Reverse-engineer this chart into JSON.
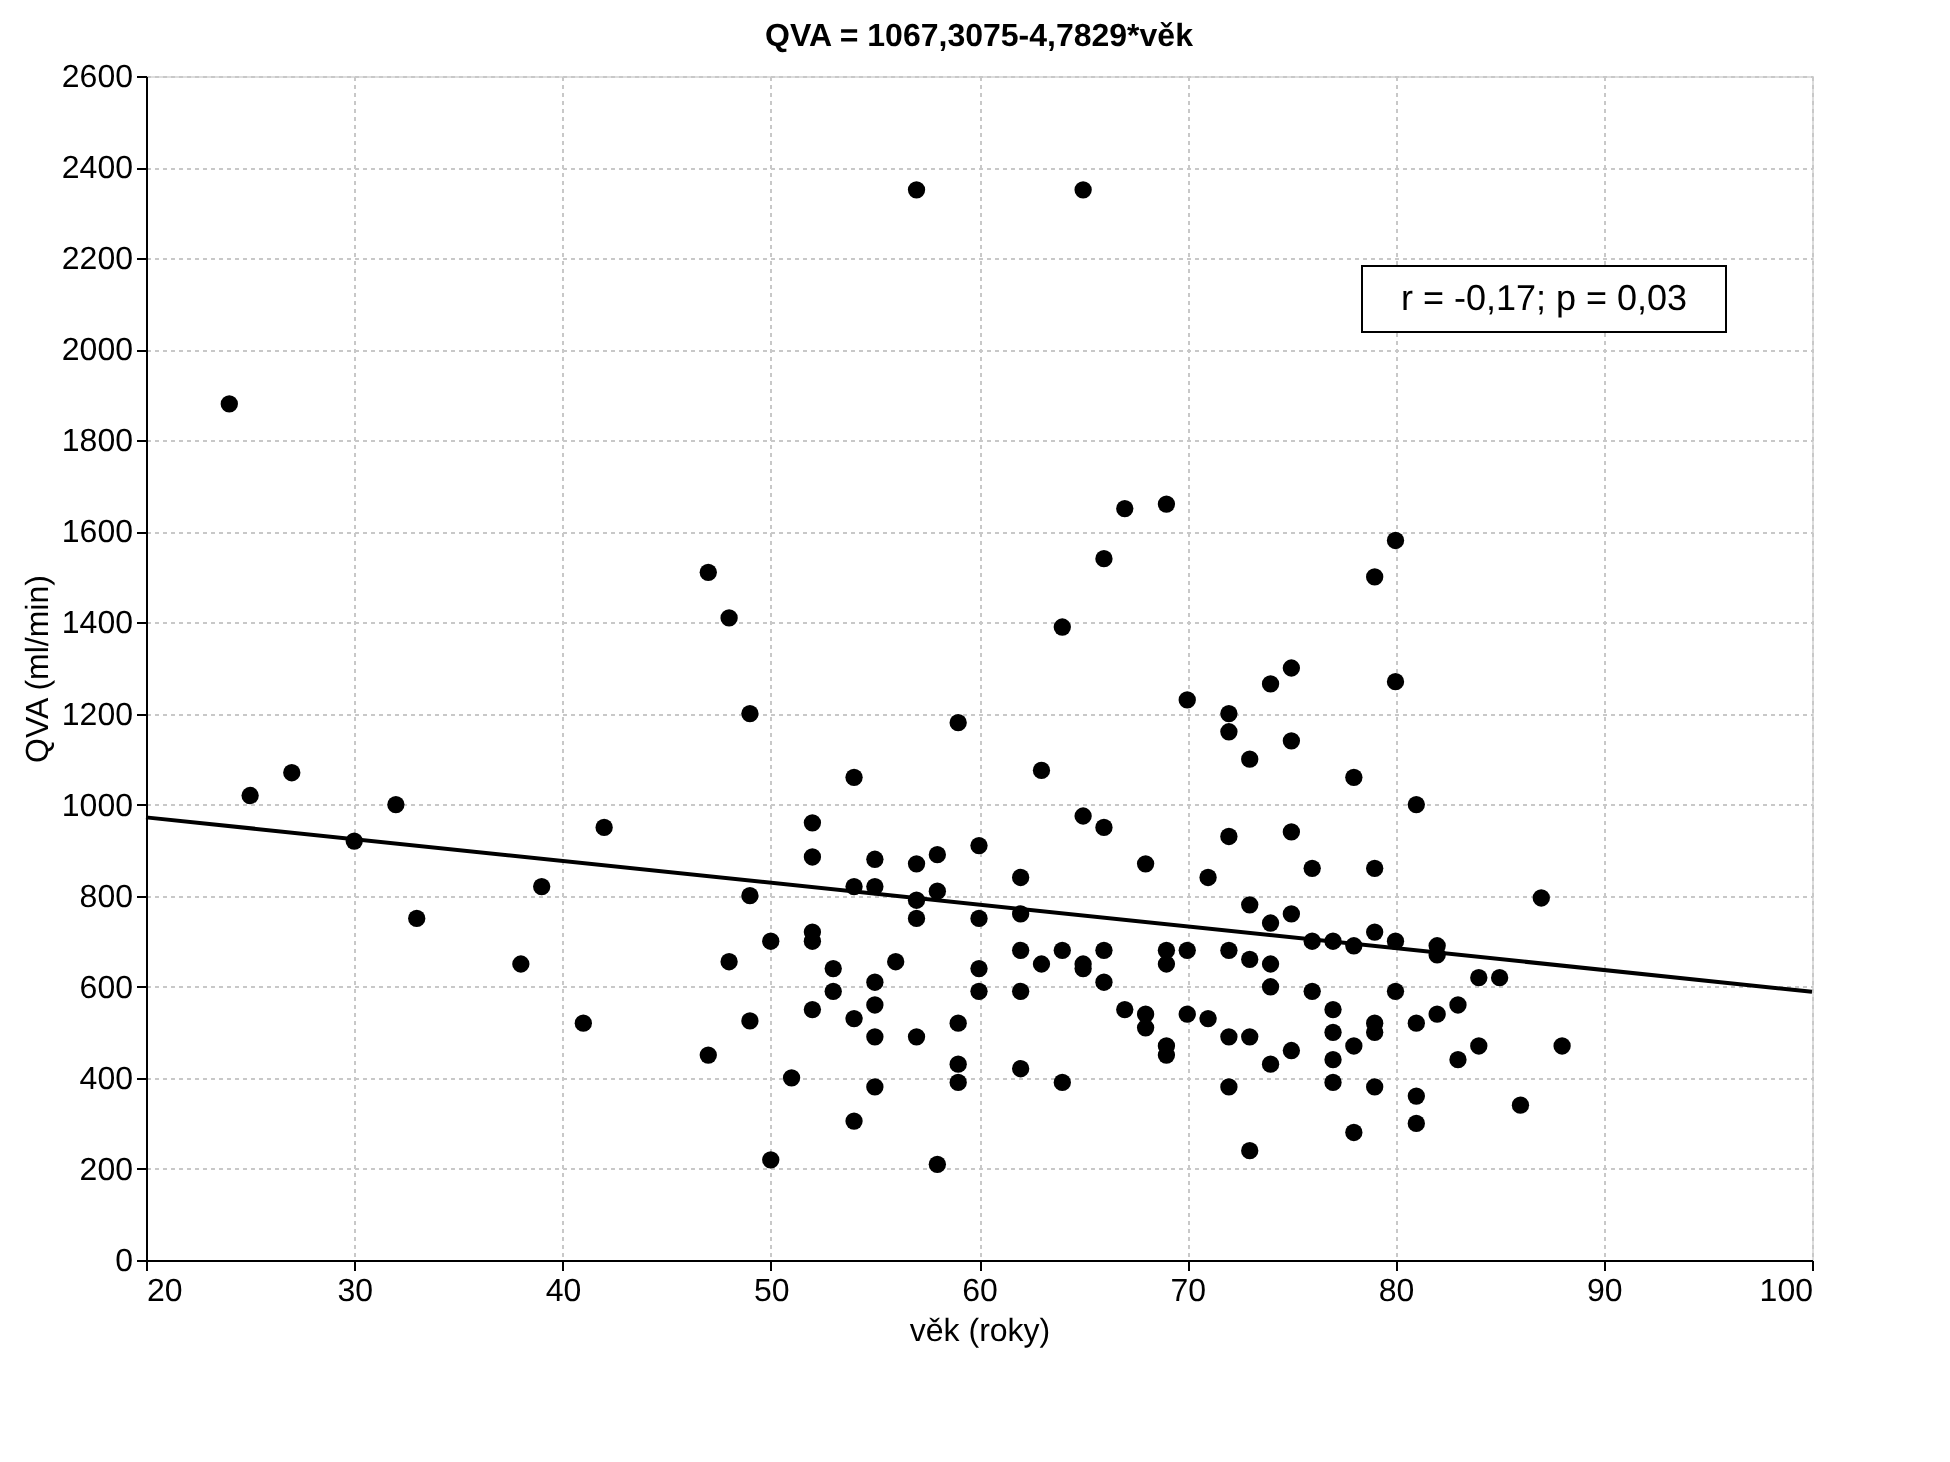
{
  "chart_data": {
    "type": "scatter",
    "title": "QVA = 1067,3075-4,7829*věk",
    "xlabel": "věk (roky)",
    "ylabel": "QVA (ml/min)",
    "xlim": [
      20,
      100
    ],
    "xticks": [
      20,
      30,
      40,
      50,
      60,
      70,
      80,
      90,
      100
    ],
    "ylim": [
      0,
      2600
    ],
    "yticks": [
      0,
      200,
      400,
      600,
      800,
      1000,
      1200,
      1400,
      1600,
      1800,
      2000,
      2200,
      2400,
      2600
    ],
    "grid": true,
    "annotations": [
      "r = -0,17; p = 0,03"
    ],
    "series": [
      {
        "color": "#000000",
        "marker": "circle",
        "x": [
          24,
          25,
          27,
          30,
          32,
          33,
          38,
          39,
          41,
          42,
          47,
          47,
          48,
          48,
          49,
          49,
          49,
          50,
          50,
          51,
          52,
          52,
          52,
          52,
          52,
          53,
          53,
          54,
          54,
          54,
          54,
          55,
          55,
          55,
          55,
          55,
          55,
          56,
          57,
          57,
          57,
          57,
          57,
          58,
          58,
          58,
          59,
          59,
          59,
          59,
          60,
          60,
          60,
          60,
          62,
          62,
          62,
          62,
          62,
          63,
          63,
          64,
          64,
          64,
          65,
          65,
          65,
          65,
          66,
          66,
          66,
          66,
          67,
          67,
          68,
          68,
          68,
          69,
          69,
          69,
          69,
          69,
          70,
          70,
          70,
          71,
          71,
          72,
          72,
          72,
          72,
          72,
          72,
          73,
          73,
          73,
          73,
          73,
          74,
          74,
          74,
          74,
          74,
          75,
          75,
          75,
          75,
          75,
          76,
          76,
          76,
          77,
          77,
          77,
          77,
          77,
          78,
          78,
          78,
          78,
          79,
          79,
          79,
          79,
          79,
          79,
          80,
          80,
          80,
          80,
          81,
          81,
          81,
          81,
          82,
          82,
          82,
          83,
          83,
          84,
          84,
          85,
          86,
          87,
          88
        ],
        "values": [
          1880,
          1020,
          1070,
          920,
          1000,
          750,
          650,
          820,
          520,
          950,
          1510,
          450,
          1410,
          655,
          1200,
          800,
          525,
          700,
          220,
          400,
          960,
          885,
          720,
          700,
          550,
          640,
          590,
          1060,
          820,
          530,
          305,
          880,
          820,
          610,
          560,
          490,
          380,
          655,
          2350,
          870,
          790,
          750,
          490,
          890,
          810,
          210,
          1180,
          520,
          430,
          390,
          910,
          750,
          640,
          590,
          840,
          760,
          680,
          590,
          420,
          1075,
          650,
          1390,
          680,
          390,
          2350,
          975,
          650,
          640,
          1540,
          950,
          680,
          610,
          1650,
          550,
          870,
          540,
          510,
          1660,
          680,
          650,
          470,
          450,
          1230,
          680,
          540,
          840,
          530,
          1200,
          1160,
          930,
          680,
          490,
          380,
          1100,
          780,
          660,
          490,
          240,
          1265,
          740,
          650,
          600,
          430,
          1300,
          1140,
          940,
          760,
          460,
          860,
          700,
          590,
          700,
          550,
          500,
          440,
          390,
          1060,
          690,
          470,
          280,
          1500,
          860,
          720,
          520,
          500,
          380,
          1580,
          1270,
          700,
          590,
          1000,
          520,
          360,
          300,
          690,
          670,
          540,
          560,
          440,
          620,
          470,
          620,
          340,
          795,
          470
        ]
      },
      {
        "type": "line",
        "color": "#000000",
        "x": [
          20,
          100
        ],
        "values": [
          972,
          589
        ],
        "line_style": "solid"
      }
    ]
  }
}
